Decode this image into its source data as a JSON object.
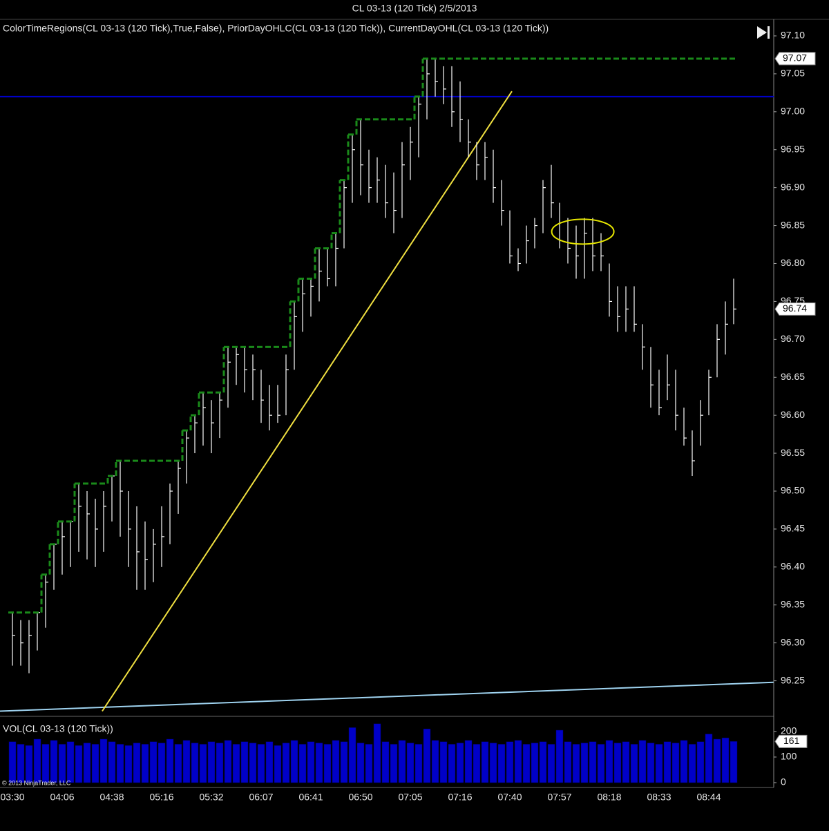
{
  "chart_data": [
    {
      "type": "ohlc",
      "title": "CL 03-13 (120 Tick)  2/5/2013",
      "indicator_label": "ColorTimeRegions(CL 03-13 (120 Tick),True,False), PriorDayOHLC(CL 03-13 (120 Tick)), CurrentDayOHL(CL 03-13 (120 Tick))",
      "categories": [
        "03:30",
        null,
        null,
        null,
        null,
        null,
        "04:06",
        null,
        null,
        null,
        null,
        null,
        "04:38",
        null,
        null,
        null,
        null,
        null,
        "05:16",
        null,
        null,
        null,
        null,
        null,
        "05:32",
        null,
        null,
        null,
        null,
        null,
        "06:07",
        null,
        null,
        null,
        null,
        null,
        "06:41",
        null,
        null,
        null,
        null,
        null,
        "06:50",
        null,
        null,
        null,
        null,
        null,
        "07:05",
        null,
        null,
        null,
        null,
        null,
        "07:16",
        null,
        null,
        null,
        null,
        null,
        "07:40",
        null,
        null,
        null,
        null,
        null,
        "07:57",
        null,
        null,
        null,
        null,
        null,
        "08:18",
        null,
        null,
        null,
        null,
        null,
        "08:33",
        null,
        null,
        null,
        null,
        null,
        "08:44",
        null,
        null,
        null
      ],
      "high": [
        96.34,
        96.33,
        96.33,
        96.34,
        96.39,
        96.43,
        96.46,
        96.46,
        96.51,
        96.5,
        96.49,
        96.5,
        96.52,
        96.54,
        96.5,
        96.48,
        96.46,
        96.45,
        96.48,
        96.51,
        96.54,
        96.58,
        96.6,
        96.63,
        96.62,
        96.63,
        96.69,
        96.69,
        96.69,
        96.68,
        96.66,
        96.64,
        96.64,
        96.68,
        96.75,
        96.78,
        96.78,
        96.82,
        96.82,
        96.84,
        96.91,
        96.97,
        96.99,
        96.95,
        96.94,
        96.93,
        96.92,
        96.96,
        96.98,
        97.02,
        97.07,
        97.07,
        97.06,
        97.06,
        97.04,
        96.99,
        96.96,
        96.96,
        96.95,
        96.91,
        96.87,
        96.82,
        96.85,
        96.86,
        96.91,
        96.93,
        96.88,
        96.86,
        96.85,
        96.86,
        96.86,
        96.84,
        96.8,
        96.77,
        96.77,
        96.77,
        96.72,
        96.69,
        96.66,
        96.68,
        96.66,
        96.61,
        96.58,
        96.62,
        96.66,
        96.72,
        96.75,
        96.78
      ],
      "low": [
        96.27,
        96.27,
        96.26,
        96.29,
        96.32,
        96.37,
        96.39,
        96.4,
        96.42,
        96.41,
        96.4,
        96.42,
        96.46,
        96.44,
        96.4,
        96.37,
        96.37,
        96.38,
        96.4,
        96.43,
        96.47,
        96.51,
        96.55,
        96.56,
        96.55,
        96.57,
        96.61,
        96.64,
        96.63,
        96.62,
        96.59,
        96.58,
        96.59,
        96.6,
        96.66,
        96.71,
        96.73,
        96.75,
        96.77,
        96.77,
        96.82,
        96.88,
        96.89,
        96.88,
        96.88,
        96.86,
        96.84,
        96.86,
        96.91,
        96.94,
        96.99,
        97.02,
        97.01,
        96.98,
        96.96,
        96.94,
        96.91,
        96.91,
        96.88,
        96.85,
        96.8,
        96.79,
        96.8,
        96.82,
        96.84,
        96.86,
        96.82,
        96.8,
        96.78,
        96.78,
        96.79,
        96.79,
        96.73,
        96.71,
        96.71,
        96.71,
        96.66,
        96.61,
        96.6,
        96.62,
        96.58,
        96.56,
        96.52,
        96.56,
        96.6,
        96.65,
        96.68,
        96.72
      ],
      "close": [
        96.31,
        96.3,
        96.31,
        96.34,
        96.38,
        96.43,
        96.44,
        96.46,
        96.48,
        96.47,
        96.45,
        96.48,
        96.52,
        96.5,
        96.45,
        96.42,
        96.41,
        96.43,
        96.44,
        96.5,
        96.53,
        96.57,
        96.59,
        96.61,
        96.59,
        96.62,
        96.67,
        96.68,
        96.66,
        96.66,
        96.62,
        96.6,
        96.6,
        96.66,
        96.73,
        96.76,
        96.77,
        96.79,
        96.78,
        96.82,
        96.9,
        96.95,
        96.93,
        96.9,
        96.91,
        96.88,
        96.87,
        96.93,
        96.96,
        97.01,
        97.05,
        97.04,
        97.03,
        97.0,
        96.99,
        96.96,
        96.93,
        96.94,
        96.9,
        96.87,
        96.81,
        96.8,
        96.83,
        96.85,
        96.9,
        96.88,
        96.83,
        96.82,
        96.81,
        96.84,
        96.81,
        96.81,
        96.75,
        96.73,
        96.74,
        96.72,
        96.69,
        96.64,
        96.61,
        96.64,
        96.6,
        96.57,
        96.54,
        96.6,
        96.65,
        96.7,
        96.72,
        96.74
      ],
      "current_day_high": [
        96.34,
        96.34,
        96.34,
        96.34,
        96.39,
        96.43,
        96.46,
        96.46,
        96.51,
        96.51,
        96.51,
        96.51,
        96.52,
        96.54,
        96.54,
        96.54,
        96.54,
        96.54,
        96.54,
        96.54,
        96.54,
        96.58,
        96.6,
        96.63,
        96.63,
        96.63,
        96.69,
        96.69,
        96.69,
        96.69,
        96.69,
        96.69,
        96.69,
        96.69,
        96.75,
        96.78,
        96.78,
        96.82,
        96.82,
        96.84,
        96.91,
        96.97,
        96.99,
        96.99,
        96.99,
        96.99,
        96.99,
        96.99,
        96.99,
        97.02,
        97.07,
        97.07,
        97.07,
        97.07,
        97.07,
        97.07,
        97.07,
        97.07,
        97.07,
        97.07,
        97.07,
        97.07,
        97.07,
        97.07,
        97.07,
        97.07,
        97.07,
        97.07,
        97.07,
        97.07,
        97.07,
        97.07,
        97.07,
        97.07,
        97.07,
        97.07,
        97.07,
        97.07,
        97.07,
        97.07,
        97.07,
        97.07,
        97.07,
        97.07,
        97.07,
        97.07,
        97.07,
        97.07
      ],
      "bar_color": "#ffffff",
      "day_high_color": "#1a8a1a",
      "hline": {
        "y": 97.02,
        "color": "#0000cc"
      },
      "lines": [
        {
          "x": [
            -1.5,
            91.8
          ],
          "y": [
            96.21,
            96.248
          ],
          "color": "#9fd3f0"
        },
        {
          "x": [
            10.83,
            60.25
          ],
          "y": [
            96.21,
            97.027
          ],
          "color": "#f0e040"
        }
      ],
      "ellipse": {
        "x": 68.8,
        "y": 96.842,
        "rx": 3.75,
        "ry": 0.0164,
        "color": "#e6e600"
      },
      "price_markers": [
        97.07,
        96.74
      ],
      "ylim": [
        96.205,
        97.12
      ],
      "yticks": [
        96.25,
        {
          "value": 96.3,
          "label": "96.30"
        },
        96.35,
        {
          "value": 96.4,
          "label": "96.40"
        },
        96.45,
        {
          "value": 96.5,
          "label": "96.50"
        },
        96.55,
        {
          "value": 96.6,
          "label": "96.60"
        },
        96.65,
        {
          "value": 96.7,
          "label": "96.70"
        },
        96.75,
        {
          "value": 96.8,
          "label": "96.80"
        },
        96.85,
        {
          "value": 96.9,
          "label": "96.90"
        },
        96.95,
        {
          "value": 97.0,
          "label": "97.00"
        },
        97.05,
        {
          "value": 97.1,
          "label": "97.10"
        }
      ]
    },
    {
      "type": "bar",
      "title": "VOL(CL 03-13 (120 Tick))",
      "copyright": "© 2013 NinjaTrader, LLC",
      "values": [
        160,
        150,
        145,
        170,
        150,
        165,
        150,
        160,
        145,
        155,
        150,
        170,
        160,
        150,
        145,
        155,
        150,
        160,
        155,
        170,
        150,
        165,
        155,
        150,
        160,
        155,
        165,
        150,
        160,
        155,
        150,
        160,
        145,
        155,
        165,
        150,
        160,
        155,
        150,
        165,
        160,
        215,
        155,
        150,
        230,
        160,
        150,
        165,
        155,
        150,
        210,
        165,
        160,
        150,
        155,
        165,
        150,
        160,
        155,
        150,
        160,
        165,
        150,
        155,
        160,
        150,
        205,
        160,
        150,
        155,
        160,
        150,
        165,
        155,
        160,
        150,
        165,
        155,
        150,
        160,
        155,
        165,
        150,
        160,
        190,
        170,
        175,
        161
      ],
      "color": "#0000c8",
      "marker": 161,
      "ylim": [
        0,
        251
      ],
      "yticks": [
        0,
        100,
        200
      ]
    }
  ]
}
